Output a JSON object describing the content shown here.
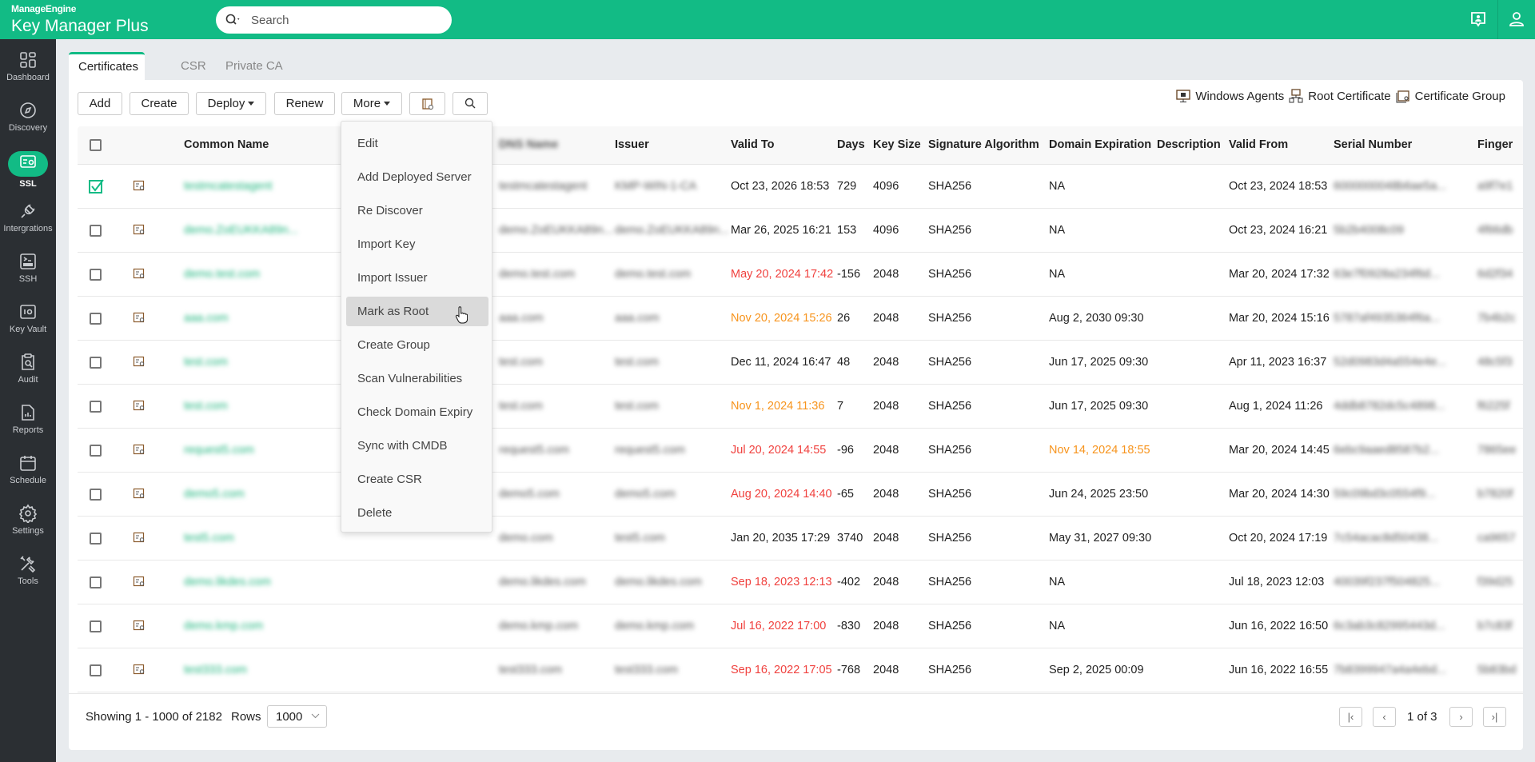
{
  "header": {
    "brand": "ManageEngine",
    "product_main": "Key Manager",
    "product_suffix": " Plus",
    "search_placeholder": "Search"
  },
  "sidebar": {
    "items": [
      {
        "label": "Dashboard",
        "icon": "dashboard-icon"
      },
      {
        "label": "Discovery",
        "icon": "compass-icon"
      },
      {
        "label": "SSL",
        "icon": "certificate-icon",
        "active": true
      },
      {
        "label": "Intergrations",
        "icon": "plug-icon"
      },
      {
        "label": "SSH",
        "icon": "ssh-terminal-icon"
      },
      {
        "label": "Key Vault",
        "icon": "vault-icon"
      },
      {
        "label": "Audit",
        "icon": "audit-icon"
      },
      {
        "label": "Reports",
        "icon": "report-icon"
      },
      {
        "label": "Schedule",
        "icon": "calendar-icon"
      },
      {
        "label": "Settings",
        "icon": "gear-icon"
      },
      {
        "label": "Tools",
        "icon": "tools-icon"
      }
    ]
  },
  "tabs": [
    {
      "label": "Certificates",
      "active": true
    },
    {
      "label": "CSR"
    },
    {
      "label": "Private CA"
    }
  ],
  "toolbar": {
    "add": "Add",
    "create": "Create",
    "deploy": "Deploy",
    "renew": "Renew",
    "more": "More"
  },
  "right_links": {
    "windows_agents": "Windows Agents",
    "root_certificate": "Root Certificate",
    "certificate_group": "Certificate Group"
  },
  "more_menu": {
    "items": [
      "Edit",
      "Add Deployed Server",
      "Re Discover",
      "Import Key",
      "Import Issuer",
      "Mark as Root",
      "Create Group",
      "Scan Vulnerabilities",
      "Check Domain Expiry",
      "Sync with CMDB",
      "Create CSR",
      "Delete"
    ],
    "highlighted": "Mark as Root"
  },
  "table": {
    "columns": [
      "Common Name",
      "DNS Name",
      "Issuer",
      "Valid To",
      "Days",
      "Key Size",
      "Signature Algorithm",
      "Domain Expiration",
      "Description",
      "Valid From",
      "Serial Number",
      "Finger"
    ],
    "rows": [
      {
        "checked": true,
        "cn": "testmcatestagent",
        "dns": "testmcatestagent",
        "issuer": "KMP-WIN-1-CA",
        "valid_to": "Oct 23, 2026 18:53",
        "vt_status": "ok",
        "days": "729",
        "key": "4096",
        "alg": "SHA256",
        "domain_exp": "NA",
        "de_status": "ok",
        "desc": "",
        "valid_from": "Oct 23, 2024 18:53",
        "serial": "6000000048b6ae5a...",
        "finger": "a9f7e1"
      },
      {
        "checked": false,
        "cn": "demo.ZoEUKKA89n...",
        "dns": "demo.ZoEUKKA89n...",
        "issuer": "demo.ZoEUKKA89n...",
        "valid_to": "Mar 26, 2025 16:21",
        "vt_status": "ok",
        "days": "153",
        "key": "4096",
        "alg": "SHA256",
        "domain_exp": "NA",
        "de_status": "ok",
        "desc": "",
        "valid_from": "Oct 23, 2024 16:21",
        "serial": "5b2b4008c09",
        "finger": "4f66db"
      },
      {
        "checked": false,
        "cn": "demo.test.com",
        "dns": "demo.test.com",
        "issuer": "demo.test.com",
        "valid_to": "May 20, 2024 17:42",
        "vt_status": "expired",
        "days": "-156",
        "key": "2048",
        "alg": "SHA256",
        "domain_exp": "NA",
        "de_status": "ok",
        "desc": "",
        "valid_from": "Mar 20, 2024 17:32",
        "serial": "63e7f0928a234f6d...",
        "finger": "6d2f34"
      },
      {
        "checked": false,
        "cn": "aaa.com",
        "dns": "aaa.com",
        "issuer": "aaa.com",
        "valid_to": "Nov 20, 2024 15:26",
        "vt_status": "warning",
        "days": "26",
        "key": "2048",
        "alg": "SHA256",
        "domain_exp": "Aug 2, 2030 09:30",
        "de_status": "ok",
        "desc": "",
        "valid_from": "Mar 20, 2024 15:16",
        "serial": "5787af4935364f6a...",
        "finger": "7b4b2c"
      },
      {
        "checked": false,
        "cn": "test.com",
        "dns": "test.com",
        "issuer": "test.com",
        "valid_to": "Dec 11, 2024 16:47",
        "vt_status": "ok",
        "days": "48",
        "key": "2048",
        "alg": "SHA256",
        "domain_exp": "Jun 17, 2025 09:30",
        "de_status": "ok",
        "desc": "",
        "valid_from": "Apr 11, 2023 16:37",
        "serial": "52d0983d4a554e4e...",
        "finger": "48c5f3"
      },
      {
        "checked": false,
        "cn": "test.com",
        "dns": "test.com",
        "issuer": "test.com",
        "valid_to": "Nov 1, 2024 11:36",
        "vt_status": "warning",
        "days": "7",
        "key": "2048",
        "alg": "SHA256",
        "domain_exp": "Jun 17, 2025 09:30",
        "de_status": "ok",
        "desc": "",
        "valid_from": "Aug 1, 2024 11:26",
        "serial": "4ddb8782dc5c4898...",
        "finger": "f6225f"
      },
      {
        "checked": false,
        "cn": "request5.com",
        "dns": "request5.com",
        "issuer": "request5.com",
        "valid_to": "Jul 20, 2024 14:55",
        "vt_status": "expired",
        "days": "-96",
        "key": "2048",
        "alg": "SHA256",
        "domain_exp": "Nov 14, 2024 18:55",
        "de_status": "warning",
        "desc": "",
        "valid_from": "Mar 20, 2024 14:45",
        "serial": "6ebc9aaed8587b2...",
        "finger": "7865ee"
      },
      {
        "checked": false,
        "cn": "demo5.com",
        "dns": "demo5.com",
        "issuer": "demo5.com",
        "valid_to": "Aug 20, 2024 14:40",
        "vt_status": "expired",
        "days": "-65",
        "key": "2048",
        "alg": "SHA256",
        "domain_exp": "Jun 24, 2025 23:50",
        "de_status": "ok",
        "desc": "",
        "valid_from": "Mar 20, 2024 14:30",
        "serial": "59c09bd3c0554f9...",
        "finger": "b7820f"
      },
      {
        "checked": false,
        "cn": "test5.com",
        "dns": "demo.com",
        "issuer": "test5.com",
        "valid_to": "Jan 20, 2035 17:29",
        "vt_status": "ok",
        "days": "3740",
        "key": "2048",
        "alg": "SHA256",
        "domain_exp": "May 31, 2027 09:30",
        "de_status": "ok",
        "desc": "",
        "valid_from": "Oct 20, 2024 17:19",
        "serial": "7c54acac8d50438...",
        "finger": "ca9657"
      },
      {
        "checked": false,
        "cn": "demo.likdes.com",
        "dns": "demo.likdes.com",
        "issuer": "demo.likdes.com",
        "valid_to": "Sep 18, 2023 12:13",
        "vt_status": "expired",
        "days": "-402",
        "key": "2048",
        "alg": "SHA256",
        "domain_exp": "NA",
        "de_status": "ok",
        "desc": "",
        "valid_from": "Jul 18, 2023 12:03",
        "serial": "40039f237f504825...",
        "finger": "f39d25"
      },
      {
        "checked": false,
        "cn": "demo.kmp.com",
        "dns": "demo.kmp.com",
        "issuer": "demo.kmp.com",
        "valid_to": "Jul 16, 2022 17:00",
        "vt_status": "expired",
        "days": "-830",
        "key": "2048",
        "alg": "SHA256",
        "domain_exp": "NA",
        "de_status": "ok",
        "desc": "",
        "valid_from": "Jun 16, 2022 16:50",
        "serial": "6c3ab3c82995443d...",
        "finger": "b7c83f"
      },
      {
        "checked": false,
        "cn": "test333.com",
        "dns": "test333.com",
        "issuer": "test333.com",
        "valid_to": "Sep 16, 2022 17:05",
        "vt_status": "expired",
        "days": "-768",
        "key": "2048",
        "alg": "SHA256",
        "domain_exp": "Sep 2, 2025 00:09",
        "de_status": "ok",
        "desc": "",
        "valid_from": "Jun 16, 2022 16:55",
        "serial": "7b8399947a4a4ebd...",
        "finger": "5b83bd"
      }
    ]
  },
  "footer": {
    "showing": "Showing 1 - 1000 of 2182",
    "rows_label": "Rows",
    "rows_value": "1000",
    "page": "1 of 3"
  },
  "colors": {
    "brand": "#12bb85",
    "expired": "#f0413e",
    "warning": "#f7941d",
    "sidebar": "#2b2f33"
  }
}
